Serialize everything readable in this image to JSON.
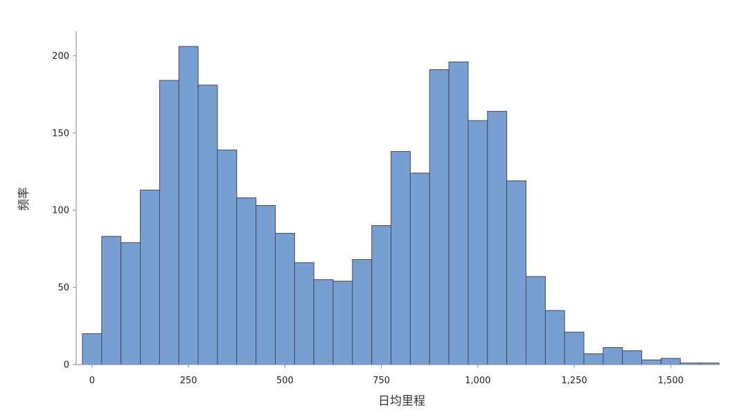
{
  "chart_data": {
    "type": "bar",
    "subtype": "histogram",
    "title": "",
    "xlabel": "日均里程",
    "ylabel": "频率",
    "xlim": [
      -25,
      1625
    ],
    "ylim": [
      0,
      215
    ],
    "bin_width": 50,
    "x_ticks": [
      0,
      250,
      500,
      750,
      1000,
      1250,
      1500
    ],
    "x_tick_labels": [
      "0",
      "250",
      "500",
      "750",
      "1,000",
      "1,250",
      "1,500"
    ],
    "y_ticks": [
      0,
      50,
      100,
      150,
      200
    ],
    "y_tick_labels": [
      "0",
      "50",
      "100",
      "150",
      "200"
    ],
    "bin_starts": [
      -25,
      25,
      75,
      125,
      175,
      225,
      275,
      325,
      375,
      425,
      475,
      525,
      575,
      625,
      675,
      725,
      775,
      825,
      875,
      925,
      975,
      1025,
      1075,
      1125,
      1175,
      1225,
      1275,
      1325,
      1375,
      1425,
      1475,
      1525,
      1575
    ],
    "values": [
      20,
      83,
      79,
      113,
      184,
      206,
      181,
      139,
      108,
      103,
      85,
      66,
      55,
      54,
      68,
      90,
      138,
      124,
      191,
      196,
      158,
      164,
      119,
      57,
      35,
      21,
      7,
      11,
      9,
      3,
      4,
      1,
      1
    ],
    "color": "#779fd1",
    "edge_color": "#3e4a5c",
    "grid": false,
    "legend": "none"
  }
}
